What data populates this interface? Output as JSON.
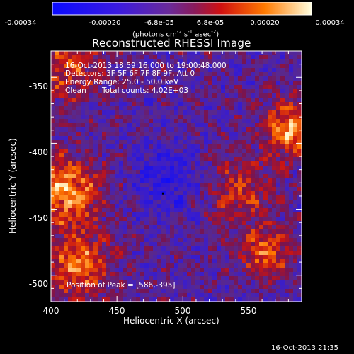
{
  "chart_data": {
    "type": "heatmap",
    "title": "Reconstructed RHESSI Image",
    "xlabel": "Heliocentric X (arcsec)",
    "ylabel": "Heliocentric Y (arcsec)",
    "xlim": [
      400,
      590
    ],
    "ylim": [
      -520,
      -330
    ],
    "x_ticks": [
      "400",
      "450",
      "500",
      "550"
    ],
    "y_ticks": [
      "-350",
      "-400",
      "-450",
      "-500"
    ],
    "colorbar": {
      "ticks": [
        "-0.00034",
        "-0.00020",
        "-6.8e-05",
        "6.8e-05",
        "0.00020",
        "0.00034"
      ],
      "units": "(photons cm",
      "units_sup1": "-2",
      "units_mid": " s",
      "units_sup2": "-1",
      "units_end": " asec",
      "units_sup3": "-2",
      "units_close": ")",
      "range": [
        -0.00034,
        0.00034
      ],
      "colors": [
        "#1010ff",
        "#5a1fd0",
        "#6a2aa0",
        "#c01818",
        "#ff6a00",
        "#ffffa0"
      ]
    },
    "annotations": {
      "time": "16-Oct-2013 18:59:16.000 to 19:00:48.000",
      "detectors": "Detectors: 3F 5F 6F 7F 8F 9F, Att 0",
      "energy": "Energy Range: 25.0 - 50.0 keV",
      "clean": "Clean",
      "counts": "Total counts: 4.02E+03",
      "peak": "Position of Peak = [586,-395]"
    },
    "peak_position": [
      586,
      -395
    ],
    "grid": false
  },
  "footer": {
    "timestamp": "16-Oct-2013 21:35"
  }
}
